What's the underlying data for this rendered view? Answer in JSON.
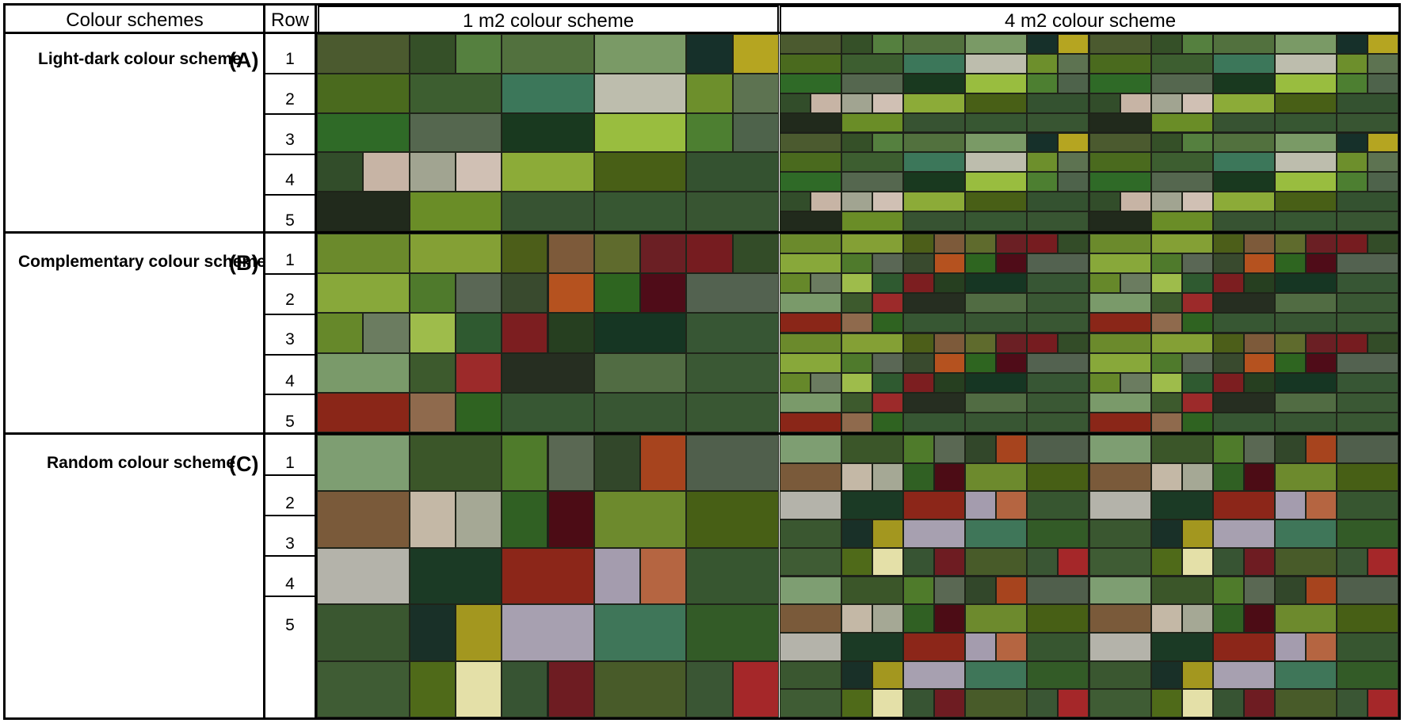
{
  "headers": {
    "col1": "Colour schemes",
    "col2": "Row",
    "col3": "1 m2 colour scheme",
    "col4": "4 m2 colour scheme"
  },
  "sections": [
    {
      "label": "Light-dark colour scheme",
      "letter": "(A)",
      "rows": [
        "1",
        "2",
        "3",
        "4",
        "5"
      ],
      "grid": [
        [
          [
            "#4b5a2f",
            1
          ],
          [
            "#355028",
            0.5
          ],
          [
            "#55803f",
            0.5
          ],
          [
            "#52713e",
            1
          ],
          [
            "#7a9a66",
            1
          ],
          [
            "#16302a",
            0.5
          ],
          [
            "#b5a521",
            0.5
          ]
        ],
        [
          [
            "#4a6a1e",
            1
          ],
          [
            "#3d5e30",
            1
          ],
          [
            "#3c775a",
            1
          ],
          [
            "#bdbdad",
            1
          ],
          [
            "#6d8f2c",
            0.5
          ],
          [
            "#5d7351",
            0.5
          ]
        ],
        [
          [
            "#2f6a27",
            1
          ],
          [
            "#55674f",
            1
          ],
          [
            "#19391f",
            1
          ],
          [
            "#99bd3f",
            1
          ],
          [
            "#4d7f31",
            0.5
          ],
          [
            "#4e634b",
            0.5
          ]
        ],
        [
          [
            "#324d2a",
            0.5
          ],
          [
            "#c7b4a5",
            0.5
          ],
          [
            "#a1a491",
            0.5
          ],
          [
            "#d0c0b4",
            0.5
          ],
          [
            "#8cab38",
            1
          ],
          [
            "#485f16",
            1
          ],
          [
            "#345230",
            1
          ]
        ],
        [
          [
            "#212a1c",
            1
          ],
          [
            "#6a8d27",
            1
          ],
          [
            "#375332",
            1
          ],
          [
            "#375732",
            1
          ],
          [
            "#385532",
            1
          ]
        ]
      ]
    },
    {
      "label": "Complementary colour scheme",
      "letter": "(B)",
      "rows": [
        "1",
        "2",
        "3",
        "4",
        "5"
      ],
      "grid": [
        [
          [
            "#6b8a2c",
            1
          ],
          [
            "#84a035",
            1
          ],
          [
            "#4c5e19",
            0.5
          ],
          [
            "#7d5a3a",
            0.5
          ],
          [
            "#5f6b2d",
            0.5
          ],
          [
            "#6b1f24",
            0.5
          ],
          [
            "#761c20",
            0.5
          ],
          [
            "#334c28",
            0.5
          ]
        ],
        [
          [
            "#88a83a",
            1
          ],
          [
            "#4f7a2c",
            0.5
          ],
          [
            "#5a6755",
            0.5
          ],
          [
            "#394a2e",
            0.5
          ],
          [
            "#b5521f",
            0.5
          ],
          [
            "#2e6520",
            0.5
          ],
          [
            "#4f0c18",
            0.5
          ],
          [
            "#536250",
            1
          ]
        ],
        [
          [
            "#66882a",
            0.5
          ],
          [
            "#6b7c60",
            0.5
          ],
          [
            "#9ebc4b",
            0.5
          ],
          [
            "#2f5a30",
            0.5
          ],
          [
            "#7c1e20",
            0.5
          ],
          [
            "#263f20",
            0.5
          ],
          [
            "#163623",
            1
          ],
          [
            "#375634",
            1
          ]
        ],
        [
          [
            "#7a9a6a",
            1
          ],
          [
            "#3d5a2d",
            0.5
          ],
          [
            "#9c2a2a",
            0.5
          ],
          [
            "#262e21",
            1
          ],
          [
            "#516c43",
            1
          ],
          [
            "#3a5834",
            1
          ]
        ],
        [
          [
            "#8a2618",
            1
          ],
          [
            "#8f6a4d",
            0.5
          ],
          [
            "#2f6321",
            0.5
          ],
          [
            "#375733",
            1
          ],
          [
            "#385633",
            1
          ],
          [
            "#395733",
            1
          ]
        ]
      ]
    },
    {
      "label": "Random colour scheme",
      "letter": "(C)",
      "rows": [
        "1",
        "2",
        "3",
        "4",
        "5"
      ],
      "grid": [
        [
          [
            "#7e9e72",
            1
          ],
          [
            "#3b5629",
            1
          ],
          [
            "#4f7b2b",
            0.5
          ],
          [
            "#5a6853",
            0.5
          ],
          [
            "#32472a",
            0.5
          ],
          [
            "#a7441e",
            0.5
          ],
          [
            "#505f4c",
            1
          ]
        ],
        [
          [
            "#7a5a3a",
            1
          ],
          [
            "#c4b8a6",
            0.5
          ],
          [
            "#a5a895",
            0.5
          ],
          [
            "#306023",
            0.5
          ],
          [
            "#4c0c15",
            0.5
          ],
          [
            "#6d8a2d",
            1
          ],
          [
            "#475f15",
            1
          ]
        ],
        [
          [
            "#b4b3aa",
            1
          ],
          [
            "#1b3a25",
            1
          ],
          [
            "#8c2619",
            1
          ],
          [
            "#a49cae",
            0.5
          ],
          [
            "#b56541",
            0.5
          ],
          [
            "#375630",
            1
          ]
        ],
        [
          [
            "#3a5730",
            1
          ],
          [
            "#193028",
            0.5
          ],
          [
            "#a3971f",
            0.5
          ],
          [
            "#a7a0b0",
            1
          ],
          [
            "#3f7659",
            1
          ],
          [
            "#335b27",
            1
          ]
        ],
        [
          [
            "#3f5c34",
            1
          ],
          [
            "#4f6a19",
            0.5
          ],
          [
            "#e4e0a8",
            0.5
          ],
          [
            "#375433",
            0.5
          ],
          [
            "#6e1c22",
            0.5
          ],
          [
            "#485b29",
            1
          ],
          [
            "#3a5634",
            0.5
          ],
          [
            "#a52729",
            0.5
          ]
        ]
      ]
    }
  ]
}
